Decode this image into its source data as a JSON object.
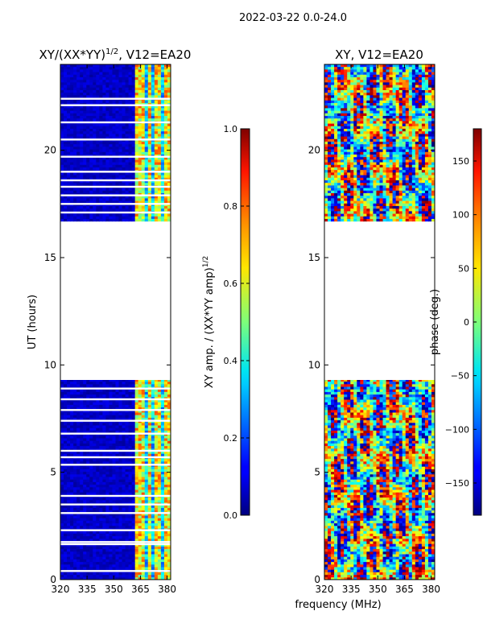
{
  "suptitle": "2022-03-22 0.0-24.0",
  "shared_xlabel": "frequency (MHz)",
  "chart_data": [
    {
      "type": "heatmap",
      "title": "XY/(XX*YY)^1/2, V12=EA20",
      "title_main": "XY/(XX*YY)",
      "title_exp": "1/2",
      "title_tail": ", V12=EA20",
      "xlabel": "frequency (MHz)",
      "ylabel": "UT (hours)",
      "xlim": [
        320,
        382
      ],
      "ylim": [
        0,
        24
      ],
      "xticks": [
        320,
        335,
        350,
        365,
        380
      ],
      "yticks": [
        0,
        5,
        10,
        15,
        20
      ],
      "data_hour_ranges": [
        [
          0,
          9.3
        ],
        [
          16.7,
          24
        ]
      ],
      "gap_rows_hours": [
        0.4,
        1.65,
        1.75,
        2.3,
        3.1,
        3.5,
        3.9,
        5.35,
        5.7,
        6.0,
        6.8,
        7.4,
        7.9,
        8.4,
        8.9,
        17.1,
        17.5,
        17.9,
        18.3,
        18.6,
        19.0,
        19.7,
        20.5,
        21.3,
        22.1,
        22.4
      ],
      "features": "low amplitude (~0.05) below 360 MHz; strong vertical bands (0.4-0.8) near 362-382 MHz",
      "colorbar": {
        "label_main": "XY amp. / (XX*YY amp)",
        "label_exp": "1/2",
        "range": [
          0.0,
          1.0
        ],
        "ticks": [
          "0.0",
          "0.2",
          "0.4",
          "0.6",
          "0.8",
          "1.0"
        ]
      }
    },
    {
      "type": "heatmap",
      "title": "XY, V12=EA20",
      "xlabel": "frequency (MHz)",
      "ylabel": "",
      "xlim": [
        320,
        382
      ],
      "ylim": [
        0,
        24
      ],
      "xticks": [
        320,
        335,
        350,
        365,
        380
      ],
      "yticks": [
        0,
        5,
        10,
        15,
        20
      ],
      "data_hour_ranges": [
        [
          0,
          9.3
        ],
        [
          16.7,
          24
        ]
      ],
      "features": "phase varies across full -180..180 deg range, noisy striped structure",
      "colorbar": {
        "label": "phase (deg.)",
        "range": [
          -180,
          180
        ],
        "ticks": [
          "−150",
          "−100",
          "−50",
          "0",
          "50",
          "100",
          "150"
        ]
      }
    }
  ]
}
